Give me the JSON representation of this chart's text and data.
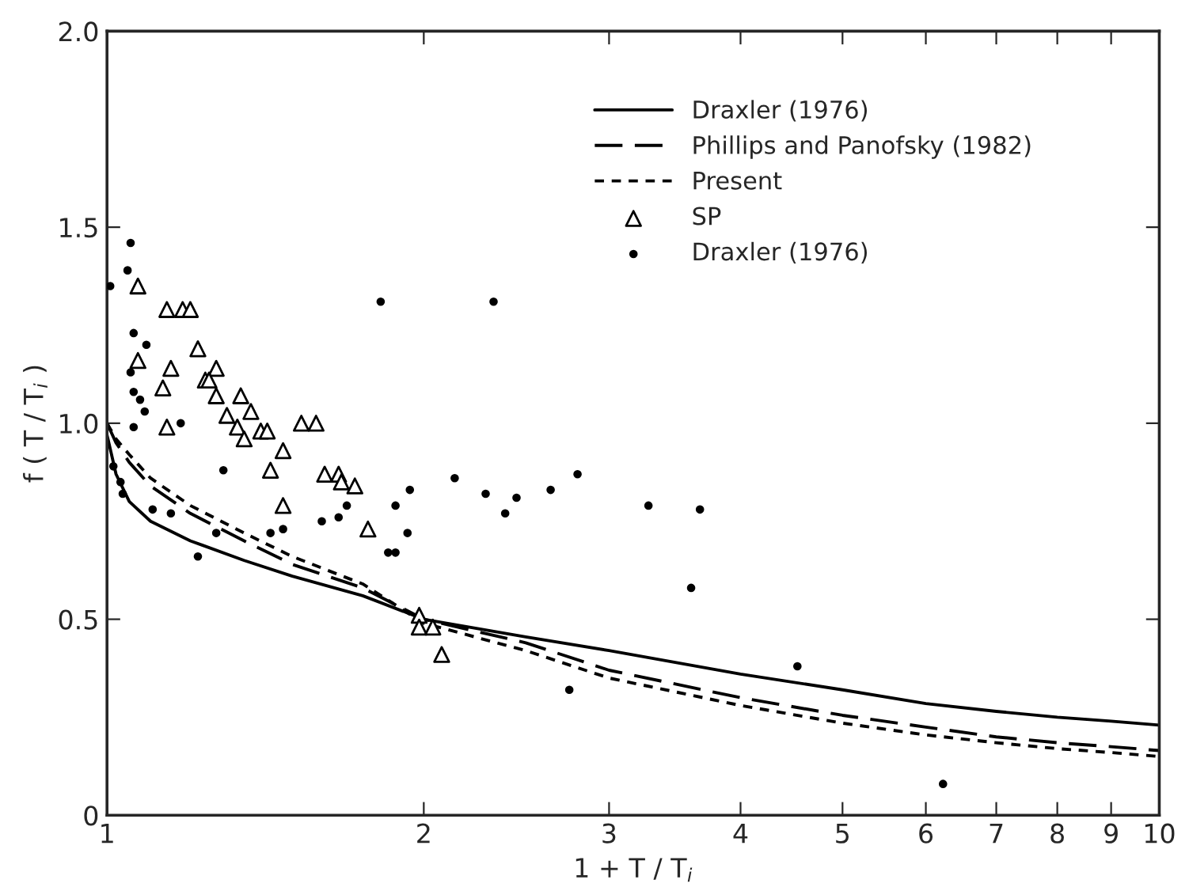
{
  "chart_data": {
    "type": "line",
    "xlabel": "1 + T / T$_{i}$",
    "ylabel": "f ( T / T$_{i}$ )",
    "log": "x",
    "xlim": [
      1,
      10
    ],
    "xticks": [
      1,
      2,
      3,
      4,
      5,
      6,
      7,
      8,
      9,
      10
    ],
    "ylim": [
      0,
      2.0
    ],
    "yticks": [
      0,
      {
        "value": 0.5,
        "label": "0.5"
      },
      {
        "value": 1.0,
        "label": "1.0"
      },
      {
        "value": 1.5,
        "label": "1.5"
      },
      {
        "value": 2.0,
        "label": "2.0"
      }
    ],
    "grid": false,
    "legend": "top right",
    "series": [
      {
        "name": "Draxler (1976)",
        "line_style": "solid",
        "color": "#000000",
        "x": [
          1,
          1.02,
          1.05,
          1.1,
          1.2,
          1.35,
          1.5,
          1.75,
          2,
          2.5,
          3,
          4,
          5,
          6,
          7,
          8,
          9,
          10
        ],
        "values": [
          0.97,
          0.87,
          0.8,
          0.75,
          0.7,
          0.65,
          0.61,
          0.56,
          0.5,
          0.455,
          0.42,
          0.36,
          0.32,
          0.285,
          0.265,
          0.25,
          0.24,
          0.23
        ]
      },
      {
        "name": "Phillips and Panofsky (1982)",
        "line_style": "dashed",
        "color": "#000000",
        "x": [
          1,
          1.02,
          1.05,
          1.1,
          1.2,
          1.35,
          1.5,
          1.75,
          2,
          2.5,
          3,
          4,
          5,
          6,
          7,
          8,
          9,
          10
        ],
        "values": [
          1.0,
          0.95,
          0.9,
          0.84,
          0.77,
          0.7,
          0.64,
          0.58,
          0.5,
          0.44,
          0.37,
          0.3,
          0.255,
          0.225,
          0.2,
          0.185,
          0.175,
          0.165
        ]
      },
      {
        "name": "Present",
        "line_style": "dotted",
        "color": "#000000",
        "x": [
          1,
          1.02,
          1.05,
          1.1,
          1.2,
          1.35,
          1.5,
          1.75,
          2,
          2.5,
          3,
          4,
          5,
          6,
          7,
          8,
          9,
          10
        ],
        "values": [
          1.0,
          0.96,
          0.92,
          0.86,
          0.79,
          0.72,
          0.66,
          0.59,
          0.49,
          0.42,
          0.35,
          0.28,
          0.235,
          0.205,
          0.185,
          0.17,
          0.16,
          0.15
        ]
      },
      {
        "name": "SP",
        "type": "scatter",
        "marker": "triangle",
        "color": "#000000",
        "x": [
          1.07,
          1.14,
          1.18,
          1.2,
          1.07,
          1.22,
          1.15,
          1.27,
          1.24,
          1.25,
          1.13,
          1.34,
          1.27,
          1.37,
          1.3,
          1.14,
          1.33,
          1.35,
          1.4,
          1.42,
          1.53,
          1.58,
          1.47,
          1.43,
          1.61,
          1.66,
          1.67,
          1.72,
          1.47,
          1.77,
          1.98,
          1.98,
          2.04,
          2.08
        ],
        "values": [
          1.35,
          1.29,
          1.29,
          1.29,
          1.16,
          1.19,
          1.14,
          1.14,
          1.11,
          1.11,
          1.09,
          1.07,
          1.07,
          1.03,
          1.02,
          0.99,
          0.99,
          0.96,
          0.98,
          0.98,
          1.0,
          1.0,
          0.93,
          0.88,
          0.87,
          0.87,
          0.85,
          0.84,
          0.79,
          0.73,
          0.51,
          0.48,
          0.48,
          0.41
        ]
      },
      {
        "name": "Draxler (1976)",
        "type": "scatter",
        "marker": "circle",
        "color": "#000000",
        "x": [
          1.007,
          1.053,
          1.046,
          1.06,
          1.09,
          1.053,
          1.06,
          1.075,
          1.086,
          1.06,
          1.175,
          1.29,
          1.035,
          1.105,
          1.15,
          1.22,
          1.27,
          1.43,
          1.47,
          1.6,
          1.66,
          1.69,
          1.94,
          1.88,
          1.93,
          1.85,
          1.88,
          2.14,
          2.29,
          1.82,
          2.33,
          2.39,
          2.45,
          2.64,
          2.8,
          3.27,
          3.66,
          3.59,
          2.75,
          4.53,
          6.23,
          1.014,
          1.03
        ],
        "values": [
          1.35,
          1.46,
          1.39,
          1.23,
          1.2,
          1.13,
          1.08,
          1.06,
          1.03,
          0.99,
          1.0,
          0.88,
          0.82,
          0.78,
          0.77,
          0.66,
          0.72,
          0.72,
          0.73,
          0.75,
          0.76,
          0.79,
          0.83,
          0.79,
          0.72,
          0.67,
          0.67,
          0.86,
          0.82,
          1.31,
          1.31,
          0.77,
          0.81,
          0.83,
          0.87,
          0.79,
          0.78,
          0.58,
          0.32,
          0.38,
          0.08,
          0.89,
          0.85
        ]
      }
    ]
  }
}
